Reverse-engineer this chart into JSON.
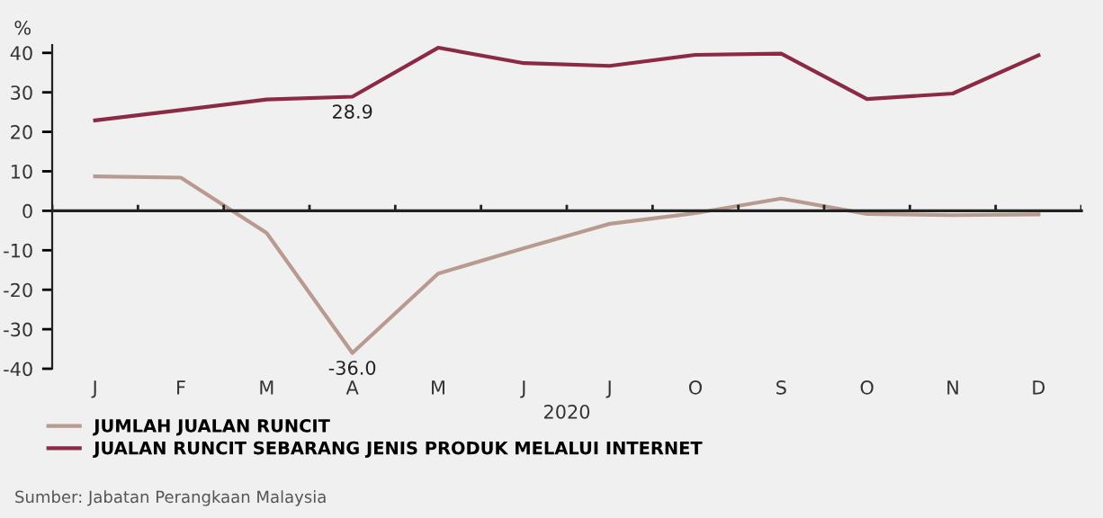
{
  "chart_data": {
    "type": "line",
    "ylabel": "%",
    "xlabel": "2020",
    "categories": [
      "J",
      "F",
      "M",
      "A",
      "M",
      "J",
      "J",
      "O",
      "S",
      "O",
      "N",
      "D"
    ],
    "series": [
      {
        "name": "JUMLAH JUALAN RUNCIT",
        "color": "#b89a90",
        "values": [
          8.7,
          8.4,
          -5.6,
          -36.0,
          -15.9,
          -9.5,
          -3.3,
          -0.6,
          3.1,
          -0.8,
          -1.1,
          -0.9
        ],
        "value_labels": [
          null,
          null,
          null,
          "-36.0",
          null,
          null,
          null,
          null,
          null,
          null,
          null,
          null
        ]
      },
      {
        "name": "JUALAN RUNCIT SEBARANG JENIS PRODUK MELALUI INTERNET",
        "color": "#8b2a45",
        "values": [
          22.9,
          25.5,
          28.2,
          28.9,
          41.3,
          37.4,
          36.7,
          39.5,
          39.8,
          28.3,
          29.7,
          39.4
        ],
        "value_labels": [
          null,
          null,
          null,
          "28.9",
          null,
          null,
          null,
          null,
          null,
          null,
          null,
          null
        ]
      }
    ],
    "ylim": [
      -40,
      42
    ],
    "yticks": [
      -40,
      -30,
      -20,
      -10,
      0,
      10,
      20,
      30,
      40
    ],
    "legend": "bottom left",
    "marker": "none",
    "line_style": "solid",
    "annotations": [
      "Sumber: Jabatan Perangkaan Malaysia"
    ]
  }
}
